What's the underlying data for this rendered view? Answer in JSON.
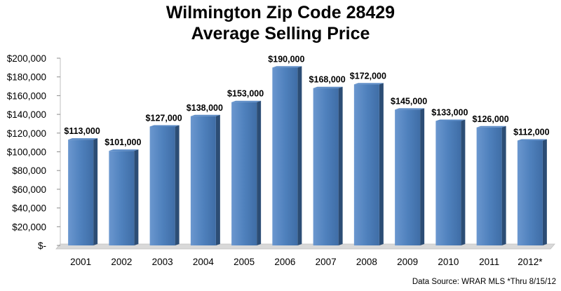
{
  "chart_data": {
    "type": "bar",
    "title": "Wilmington Zip Code 28429",
    "subtitle": "Average Selling Price",
    "categories": [
      "2001",
      "2002",
      "2003",
      "2004",
      "2005",
      "2006",
      "2007",
      "2008",
      "2009",
      "2010",
      "2011",
      "2012*"
    ],
    "values": [
      113000,
      101000,
      127000,
      138000,
      153000,
      190000,
      168000,
      172000,
      145000,
      133000,
      126000,
      112000
    ],
    "data_labels": [
      "$113,000",
      "$101,000",
      "$127,000",
      "$138,000",
      "$153,000",
      "$190,000",
      "$168,000",
      "$172,000",
      "$145,000",
      "$133,000",
      "$126,000",
      "$112,000"
    ],
    "y_ticks": [
      0,
      20000,
      40000,
      60000,
      80000,
      100000,
      120000,
      140000,
      160000,
      180000,
      200000
    ],
    "y_tick_labels": [
      "$-",
      "$20,000",
      "$40,000",
      "$60,000",
      "$80,000",
      "$100,000",
      "$120,000",
      "$140,000",
      "$160,000",
      "$180,000",
      "$200,000"
    ],
    "ylim": [
      0,
      200000
    ],
    "grid": false,
    "legend": "none",
    "xlabel": "",
    "ylabel": "",
    "source_note": "Data Source: WRAR MLS  *Thru 8/15/12",
    "colors": {
      "bar_front": "#4f81bd",
      "bar_side": "#2c4d75",
      "floor": "#d9d9d9"
    }
  }
}
